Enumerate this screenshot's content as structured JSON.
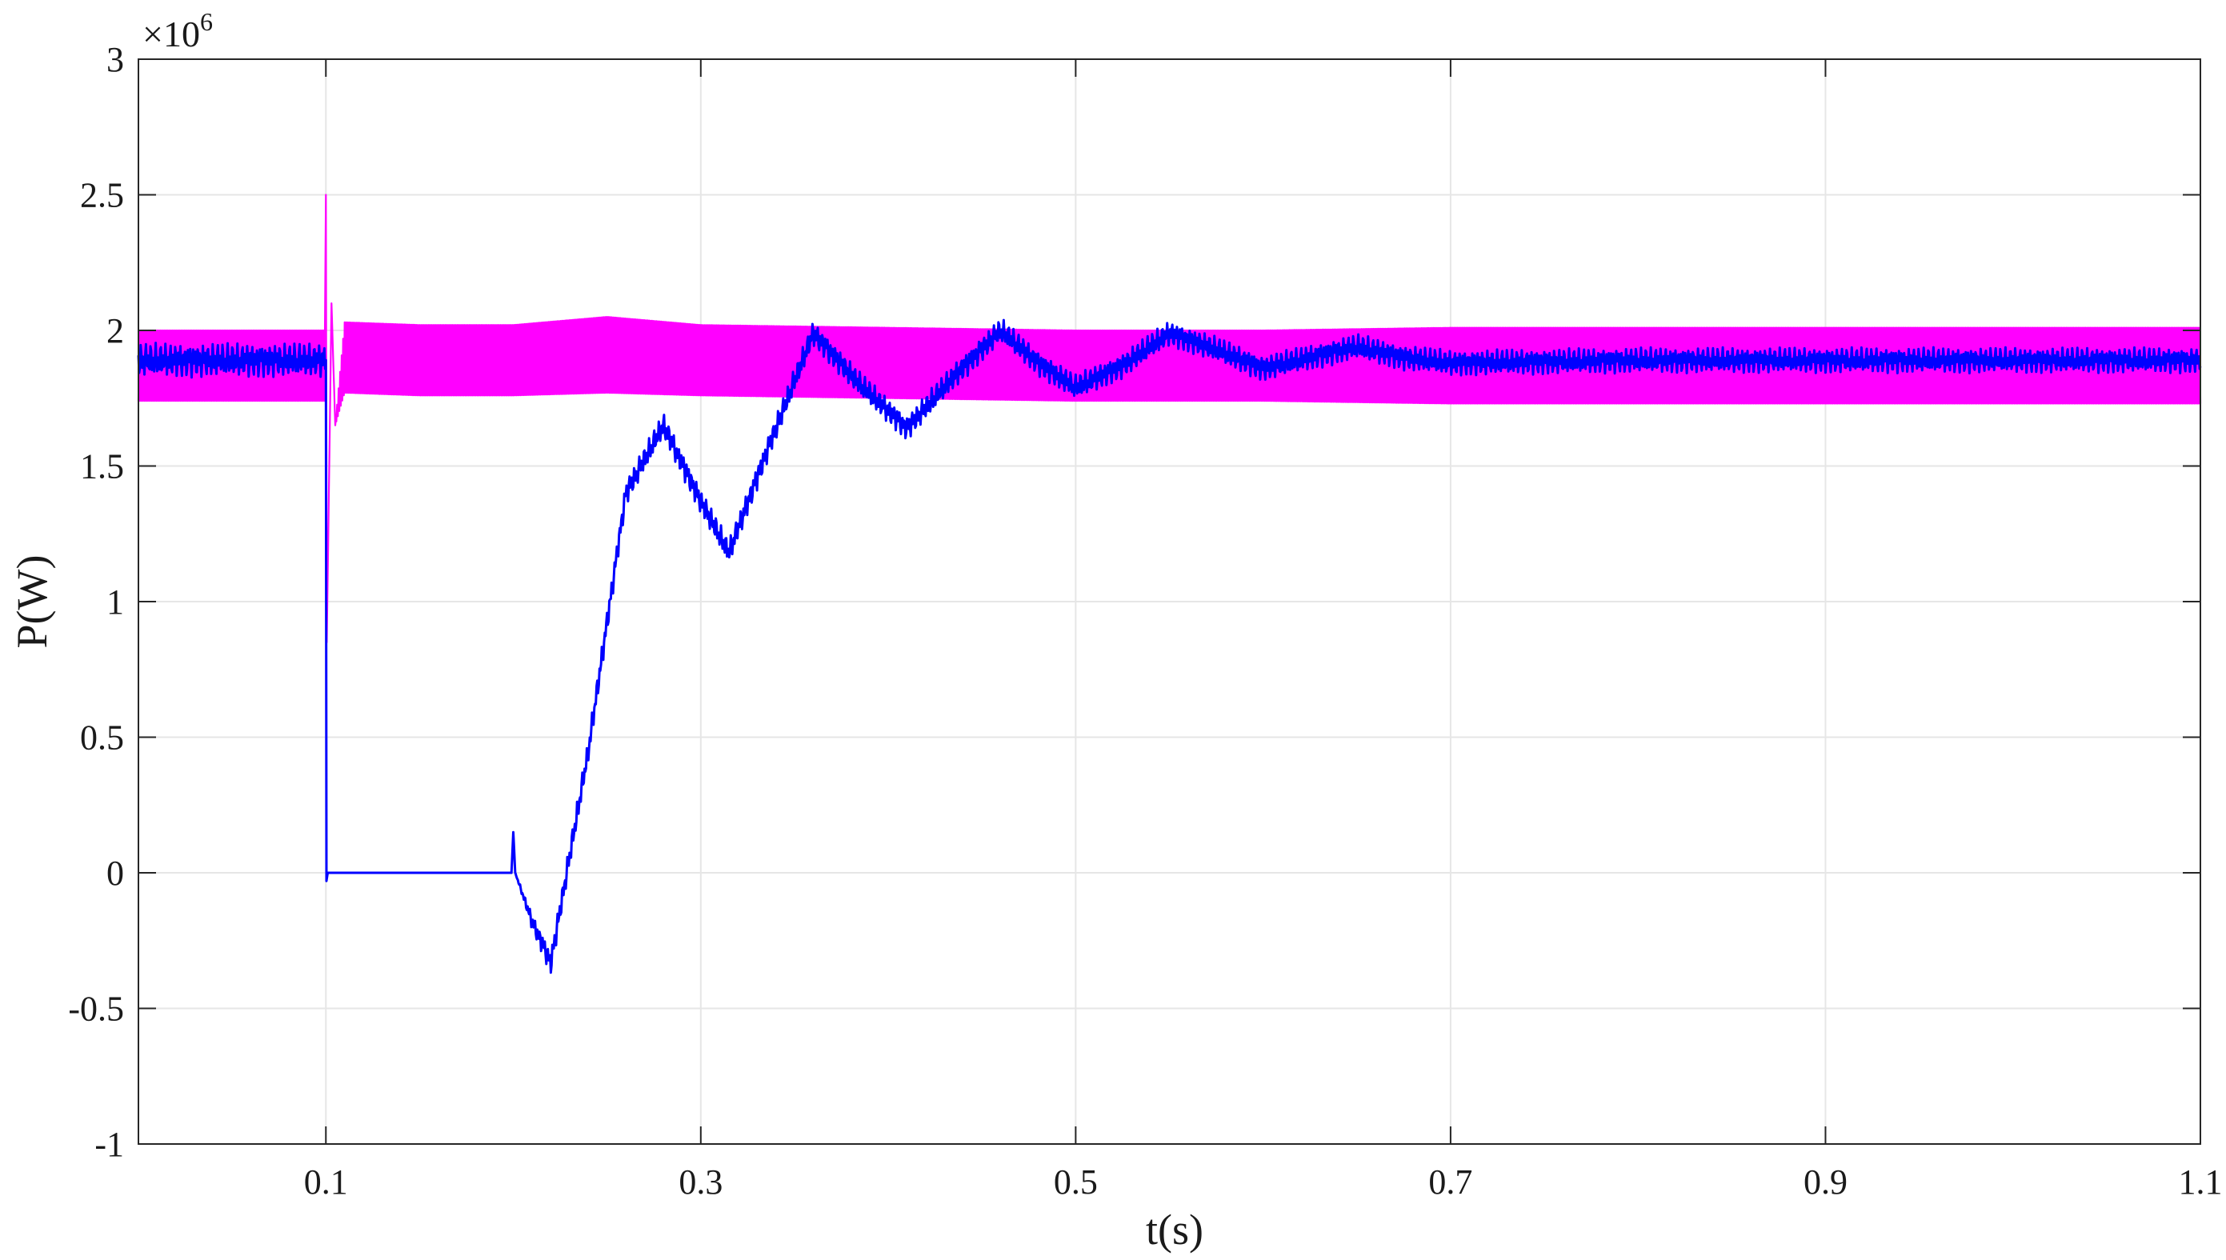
{
  "chart_data": {
    "type": "line",
    "xlabel": "t(s)",
    "ylabel": "P(W)",
    "y_multiplier": "×10",
    "y_multiplier_exp": "6",
    "xlim": [
      0,
      1.1
    ],
    "ylim": [
      -1,
      3
    ],
    "grid": true,
    "x_ticks": [
      0.1,
      0.3,
      0.5,
      0.7,
      0.9,
      1.1
    ],
    "x_tick_labels": [
      "0.1",
      "0.3",
      "0.5",
      "0.7",
      "0.9",
      "1.1"
    ],
    "y_ticks": [
      -1,
      -0.5,
      0,
      0.5,
      1,
      1.5,
      2,
      2.5,
      3
    ],
    "y_tick_labels": [
      "-1",
      "-0.5",
      "0",
      "0.5",
      "1",
      "1.5",
      "2",
      "2.5",
      "3"
    ],
    "series": [
      {
        "color": "#ff00ff",
        "x": [
          0,
          0.05,
          0.0995,
          0.1,
          0.1005,
          0.103,
          0.105,
          0.11,
          0.15,
          0.2,
          0.25,
          0.3,
          0.4,
          0.5,
          0.6,
          0.7,
          0.8,
          0.9,
          1.0,
          1.1
        ],
        "y": [
          1.87,
          1.87,
          1.87,
          2.5,
          0.85,
          2.1,
          1.65,
          1.9,
          1.89,
          1.89,
          1.91,
          1.89,
          1.88,
          1.87,
          1.87,
          1.87,
          1.87,
          1.87,
          1.87,
          1.87
        ],
        "ripple": [
          0.13,
          0.13,
          0.13,
          0,
          0,
          0,
          0,
          0.13,
          0.13,
          0.13,
          0.14,
          0.13,
          0.13,
          0.13,
          0.13,
          0.14,
          0.14,
          0.14,
          0.14,
          0.14
        ]
      },
      {
        "color": "#0000ff",
        "x": [
          0,
          0.05,
          0.0995,
          0.1,
          0.1003,
          0.101,
          0.11,
          0.15,
          0.199,
          0.2,
          0.201,
          0.21,
          0.22,
          0.24,
          0.26,
          0.28,
          0.3,
          0.315,
          0.335,
          0.36,
          0.385,
          0.41,
          0.435,
          0.46,
          0.48,
          0.5,
          0.525,
          0.55,
          0.575,
          0.6,
          0.625,
          0.65,
          0.675,
          0.7,
          0.8,
          0.9,
          1.0,
          1.1
        ],
        "y": [
          1.89,
          1.89,
          1.89,
          1.89,
          -0.03,
          0,
          0,
          0,
          0,
          0.15,
          0,
          -0.18,
          -0.33,
          0.45,
          1.4,
          1.65,
          1.37,
          1.18,
          1.55,
          1.99,
          1.8,
          1.64,
          1.83,
          2.0,
          1.88,
          1.79,
          1.87,
          1.99,
          1.93,
          1.86,
          1.9,
          1.94,
          1.9,
          1.88,
          1.89,
          1.89,
          1.89,
          1.89
        ],
        "ripple": [
          0.04,
          0.04,
          0.04,
          0,
          0,
          0,
          0,
          0,
          0,
          0,
          0,
          0.02,
          0.03,
          0.03,
          0.03,
          0.03,
          0.03,
          0.03,
          0.03,
          0.03,
          0.03,
          0.03,
          0.03,
          0.03,
          0.03,
          0.03,
          0.03,
          0.03,
          0.03,
          0.03,
          0.03,
          0.03,
          0.03,
          0.03,
          0.03,
          0.03,
          0.03,
          0.03
        ]
      }
    ]
  }
}
